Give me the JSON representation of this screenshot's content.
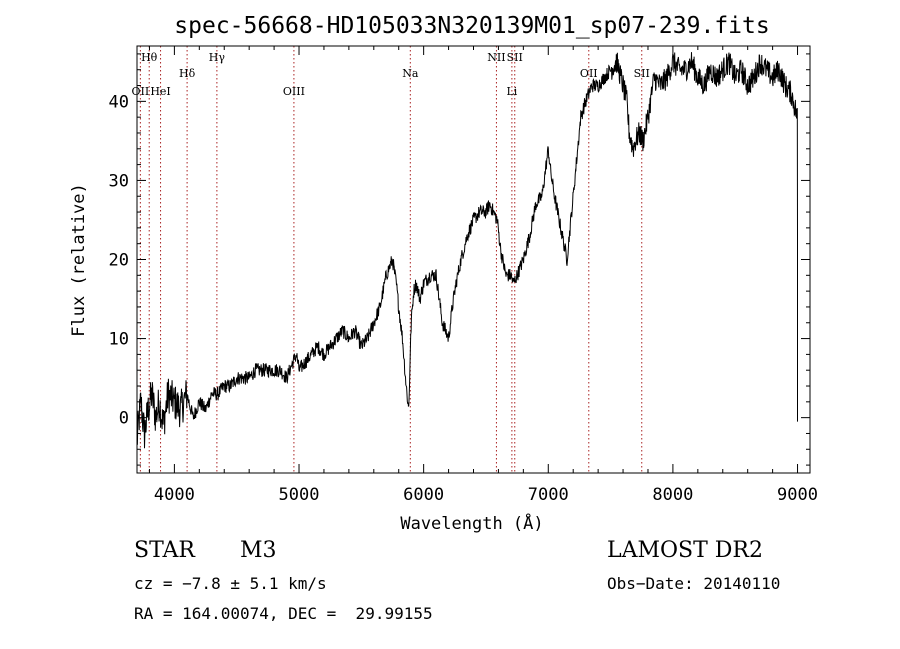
{
  "chart_data": {
    "type": "line",
    "title": "spec-56668-HD105033N320139M01_sp07-239.fits",
    "xlabel": "Wavelength (Å)",
    "ylabel": "Flux (relative)",
    "xlim": [
      3700,
      9100
    ],
    "ylim": [
      -7,
      47
    ],
    "xticks": [
      4000,
      5000,
      6000,
      7000,
      8000,
      9000
    ],
    "yticks": [
      0,
      10,
      20,
      30,
      40
    ],
    "grid": false,
    "legend": "none",
    "line_color": "#000000",
    "marker_color": "#aa2222",
    "lines": [
      {
        "label": "Hθ",
        "x": 3798,
        "row": 0
      },
      {
        "label": "OII",
        "x": 3727,
        "row": 2
      },
      {
        "label": "HeI",
        "x": 3889,
        "row": 2
      },
      {
        "label": "Hδ",
        "x": 4102,
        "row": 1
      },
      {
        "label": "Hγ",
        "x": 4341,
        "row": 0
      },
      {
        "label": "OIII",
        "x": 4959,
        "row": 2
      },
      {
        "label": "Na",
        "x": 5893,
        "row": 1
      },
      {
        "label": "NII",
        "x": 6584,
        "row": 0
      },
      {
        "label": "SII",
        "x": 6731,
        "row": 0
      },
      {
        "label": "Li",
        "x": 6708,
        "row": 2
      },
      {
        "label": "OII",
        "x": 7325,
        "row": 1
      },
      {
        "label": "SII",
        "x": 7750,
        "row": 1
      }
    ],
    "series": [
      {
        "x": [
          3700,
          3730,
          3760,
          3790,
          3820,
          3850,
          3880,
          3910,
          3950,
          4000,
          4050,
          4100,
          4150,
          4200,
          4250,
          4300,
          4350,
          4400,
          4450,
          4500,
          4550,
          4600,
          4650,
          4700,
          4750,
          4800,
          4850,
          4900,
          4950,
          4980,
          5000,
          5050,
          5100,
          5150,
          5200,
          5250,
          5300,
          5350,
          5400,
          5450,
          5500,
          5550,
          5600,
          5650,
          5700,
          5750,
          5780,
          5800,
          5830,
          5860,
          5880,
          5900,
          5920,
          5940,
          5970,
          6000,
          6050,
          6100,
          6150,
          6200,
          6230,
          6260,
          6300,
          6350,
          6400,
          6450,
          6500,
          6530,
          6560,
          6590,
          6620,
          6660,
          6700,
          6720,
          6750,
          6800,
          6850,
          6900,
          6950,
          7000,
          7020,
          7050,
          7100,
          7150,
          7200,
          7230,
          7260,
          7300,
          7350,
          7400,
          7450,
          7500,
          7550,
          7600,
          7630,
          7650,
          7680,
          7700,
          7730,
          7760,
          7800,
          7850,
          7900,
          7950,
          8000,
          8050,
          8100,
          8150,
          8200,
          8250,
          8300,
          8350,
          8400,
          8450,
          8500,
          8550,
          8600,
          8650,
          8700,
          8750,
          8800,
          8850,
          8900,
          8950,
          9000
        ],
        "values": [
          -3,
          2,
          -2,
          1,
          3,
          0,
          2,
          -1,
          3,
          2,
          1,
          3,
          0,
          2,
          1,
          3,
          3,
          4,
          4,
          5,
          5,
          5,
          6,
          6,
          6,
          6,
          6,
          5,
          7,
          8,
          6,
          7,
          8,
          9,
          8,
          9,
          10,
          11,
          10,
          11,
          9,
          10,
          12,
          14,
          18,
          20,
          17,
          14,
          10,
          4,
          1,
          12,
          16,
          17,
          15,
          17,
          18,
          18,
          12,
          10,
          14,
          17,
          20,
          23,
          25,
          26,
          26,
          27,
          26,
          25,
          21,
          18,
          18,
          17,
          18,
          20,
          23,
          27,
          28,
          34,
          31,
          28,
          24,
          20,
          28,
          33,
          38,
          40,
          42,
          42,
          43,
          44,
          45,
          42,
          40,
          36,
          34,
          35,
          36,
          35,
          38,
          43,
          42,
          43,
          45,
          44,
          44,
          45,
          43,
          42,
          44,
          43,
          44,
          45,
          43,
          44,
          42,
          43,
          45,
          44,
          43,
          44,
          42,
          41,
          38
        ]
      }
    ]
  },
  "info": {
    "class_label": "STAR",
    "subclass_label": "M3",
    "survey": "LAMOST DR2",
    "redshift": "cz = −7.8 ± 5.1 km/s",
    "obs_date": "Obs−Date: 20140110",
    "coords": "RA = 164.00074, DEC =  29.99155"
  }
}
